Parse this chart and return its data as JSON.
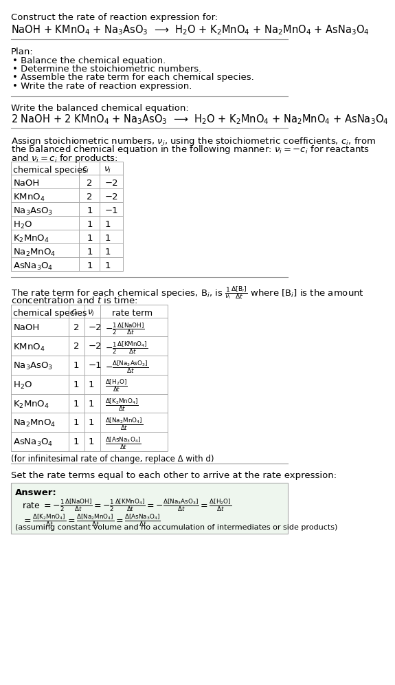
{
  "bg_color": "#ffffff",
  "text_color": "#000000",
  "title_line1": "Construct the rate of reaction expression for:",
  "reactants_eq": "NaOH + KMnO$_4$ + Na$_3$AsO$_3$  ⟶  H$_2$O + K$_2$MnO$_4$ + Na$_2$MnO$_4$ + AsNa$_3$O$_4$",
  "plan_header": "Plan:",
  "plan_items": [
    "• Balance the chemical equation.",
    "• Determine the stoichiometric numbers.",
    "• Assemble the rate term for each chemical species.",
    "• Write the rate of reaction expression."
  ],
  "balanced_header": "Write the balanced chemical equation:",
  "balanced_eq": "2 NaOH + 2 KMnO$_4$ + Na$_3$AsO$_3$  ⟶  H$_2$O + K$_2$MnO$_4$ + Na$_2$MnO$_4$ + AsNa$_3$O$_4$",
  "stoich_text1": "Assign stoichiometric numbers, $\\nu_i$, using the stoichiometric coefficients, $c_i$, from",
  "stoich_text2": "the balanced chemical equation in the following manner: $\\nu_i = -c_i$ for reactants",
  "stoich_text3": "and $\\nu_i = c_i$ for products:",
  "table1_headers": [
    "chemical species",
    "$c_i$",
    "$\\nu_i$"
  ],
  "table1_data": [
    [
      "NaOH",
      "2",
      "−2"
    ],
    [
      "KMnO$_4$",
      "2",
      "−2"
    ],
    [
      "Na$_3$AsO$_3$",
      "1",
      "−1"
    ],
    [
      "H$_2$O",
      "1",
      "1"
    ],
    [
      "K$_2$MnO$_4$",
      "1",
      "1"
    ],
    [
      "Na$_2$MnO$_4$",
      "1",
      "1"
    ],
    [
      "AsNa$_3$O$_4$",
      "1",
      "1"
    ]
  ],
  "rate_text1": "The rate term for each chemical species, B$_i$, is $\\frac{1}{\\nu_i}\\frac{\\Delta[\\mathrm{B}_i]}{\\Delta t}$ where [B$_i$] is the amount",
  "rate_text2": "concentration and $t$ is time:",
  "table2_headers": [
    "chemical species",
    "$c_i$",
    "$\\nu_i$",
    "rate term"
  ],
  "table2_data": [
    [
      "NaOH",
      "2",
      "−2",
      "$-\\frac{1}{2}\\frac{\\Delta[\\mathrm{NaOH}]}{\\Delta t}$"
    ],
    [
      "KMnO$_4$",
      "2",
      "−2",
      "$-\\frac{1}{2}\\frac{\\Delta[\\mathrm{KMnO_4}]}{\\Delta t}$"
    ],
    [
      "Na$_3$AsO$_3$",
      "1",
      "−1",
      "$-\\frac{\\Delta[\\mathrm{Na_3AsO_3}]}{\\Delta t}$"
    ],
    [
      "H$_2$O",
      "1",
      "1",
      "$\\frac{\\Delta[\\mathrm{H_2O}]}{\\Delta t}$"
    ],
    [
      "K$_2$MnO$_4$",
      "1",
      "1",
      "$\\frac{\\Delta[\\mathrm{K_2MnO_4}]}{\\Delta t}$"
    ],
    [
      "Na$_2$MnO$_4$",
      "1",
      "1",
      "$\\frac{\\Delta[\\mathrm{Na_2MnO_4}]}{\\Delta t}$"
    ],
    [
      "AsNa$_3$O$_4$",
      "1",
      "1",
      "$\\frac{\\Delta[\\mathrm{AsNa_3O_4}]}{\\Delta t}$"
    ]
  ],
  "infinitesimal_note": "(for infinitesimal rate of change, replace Δ with d)",
  "set_rate_text": "Set the rate terms equal to each other to arrive at the rate expression:",
  "answer_label": "Answer:",
  "answer_line1": "rate $= -\\frac{1}{2}\\frac{\\Delta[\\mathrm{NaOH}]}{\\Delta t} = -\\frac{1}{2}\\frac{\\Delta[\\mathrm{KMnO_4}]}{\\Delta t} = -\\frac{\\Delta[\\mathrm{Na_3AsO_3}]}{\\Delta t} = \\frac{\\Delta[\\mathrm{H_2O}]}{\\Delta t}$",
  "answer_line2": "$= \\frac{\\Delta[\\mathrm{K_2MnO_4}]}{\\Delta t} = \\frac{\\Delta[\\mathrm{Na_2MnO_4}]}{\\Delta t} = \\frac{\\Delta[\\mathrm{AsNa_3O_4}]}{\\Delta t}$",
  "answer_note": "(assuming constant volume and no accumulation of intermediates or side products)"
}
